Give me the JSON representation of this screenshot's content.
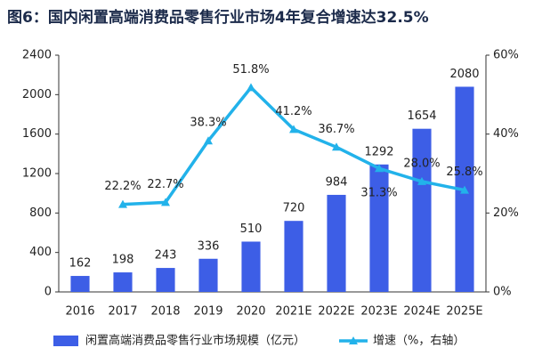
{
  "chart_data": {
    "type": "bar-line",
    "title": "图6：国内闲置高端消费品零售行业市场4年复合增速达32.5%",
    "categories": [
      "2016",
      "2017",
      "2018",
      "2019",
      "2020",
      "2021E",
      "2022E",
      "2023E",
      "2024E",
      "2025E"
    ],
    "series": [
      {
        "name": "闲置高端消费品零售行业市场规模（亿元）",
        "type": "bar",
        "color": "#3d5ee6",
        "values": [
          162,
          198,
          243,
          336,
          510,
          720,
          984,
          1292,
          1654,
          2080
        ]
      },
      {
        "name": "增速（%，右轴）",
        "type": "line",
        "axis": "y2",
        "color": "#22b2ea",
        "values": [
          null,
          22.2,
          22.7,
          38.3,
          51.8,
          41.2,
          36.7,
          31.3,
          28.0,
          25.8
        ],
        "value_labels": [
          null,
          "22.2%",
          "22.7%",
          "38.3%",
          "51.8%",
          "41.2%",
          "36.7%",
          "31.3%",
          "28.0%",
          "25.8%"
        ]
      }
    ],
    "ylim": [
      0,
      2400
    ],
    "yticks": [
      0,
      400,
      800,
      1200,
      1600,
      2000,
      2400
    ],
    "y2lim": [
      0,
      60
    ],
    "y2ticks": [
      {
        "value": 0,
        "label": "0%"
      },
      {
        "value": 20,
        "label": "20%"
      },
      {
        "value": 40,
        "label": "40%"
      },
      {
        "value": 60,
        "label": "60%"
      }
    ],
    "legend": "bottom"
  }
}
